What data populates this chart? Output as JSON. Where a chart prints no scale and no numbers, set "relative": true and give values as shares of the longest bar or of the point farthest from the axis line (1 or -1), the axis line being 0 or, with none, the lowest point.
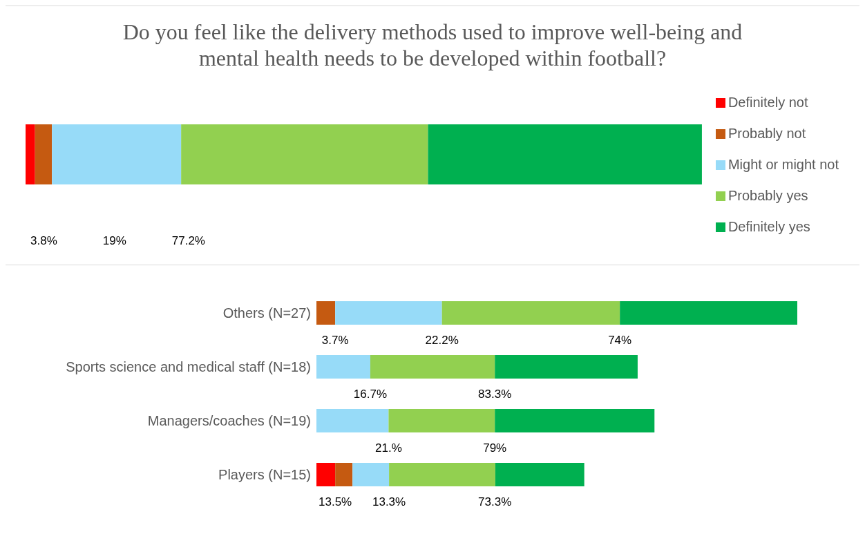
{
  "chart_data": [
    {
      "type": "bar",
      "orientation": "horizontal",
      "stacked": true,
      "relative": true,
      "title": "Do you feel like the delivery methods used to improve well-being and mental health needs to be developed within football?",
      "categories": [
        null
      ],
      "legend": "right",
      "series": [
        {
          "name": "Definitely not",
          "color": "#ff0000",
          "values": [
            0.014
          ]
        },
        {
          "name": "Probably not",
          "color": "#c55a11",
          "values": [
            0.025
          ]
        },
        {
          "name": "Might or might not",
          "color": "#97dbf8",
          "values": [
            0.191
          ]
        },
        {
          "name": "Probably yes",
          "color": "#92d050",
          "values": [
            0.365
          ]
        },
        {
          "name": "Definitely yes",
          "color": "#00b050",
          "values": [
            0.405
          ]
        }
      ],
      "annotations": [
        "3.8%",
        "19%",
        "77.2%"
      ]
    },
    {
      "type": "bar",
      "orientation": "horizontal",
      "stacked": true,
      "relative": true,
      "categories": [
        "Others (N=27)",
        "Sports science and medical staff (N=18)",
        "Managers/coaches (N=19)",
        "Players (N=15)"
      ],
      "series": [
        {
          "color": "#ff0000",
          "values": [
            0,
            0,
            0,
            0.039
          ]
        },
        {
          "color": "#c55a11",
          "values": [
            0.039,
            0,
            0,
            0.036
          ]
        },
        {
          "color": "#97dbf8",
          "values": [
            0.222,
            0.112,
            0.15,
            0.076
          ]
        },
        {
          "color": "#92d050",
          "values": [
            0.37,
            0.259,
            0.221,
            0.221
          ]
        },
        {
          "color": "#00b050",
          "values": [
            0.369,
            0.297,
            0.332,
            0.185
          ]
        }
      ],
      "annotations": [
        {
          "text": "3.7%",
          "x": 0.039,
          "y": "Others (N=27)"
        },
        {
          "text": "22.2%",
          "x": 0.261,
          "y": "Others (N=27)"
        },
        {
          "text": "74%",
          "x": 0.631,
          "y": "Others (N=27)"
        },
        {
          "text": "16.7%",
          "x": 0.112,
          "y": "Sports science and medical staff (N=18)"
        },
        {
          "text": "83.3%",
          "x": 0.371,
          "y": "Sports science and medical staff (N=18)"
        },
        {
          "text": "21.%",
          "x": 0.15,
          "y": "Managers/coaches (N=19)"
        },
        {
          "text": "79%",
          "x": 0.371,
          "y": "Managers/coaches (N=19)"
        },
        {
          "text": "13.5%",
          "x": 0.039,
          "y": "Players (N=15)"
        },
        {
          "text": "13.3%",
          "x": 0.151,
          "y": "Players (N=15)"
        },
        {
          "text": "73.3%",
          "x": 0.371,
          "y": "Players (N=15)"
        }
      ]
    }
  ]
}
